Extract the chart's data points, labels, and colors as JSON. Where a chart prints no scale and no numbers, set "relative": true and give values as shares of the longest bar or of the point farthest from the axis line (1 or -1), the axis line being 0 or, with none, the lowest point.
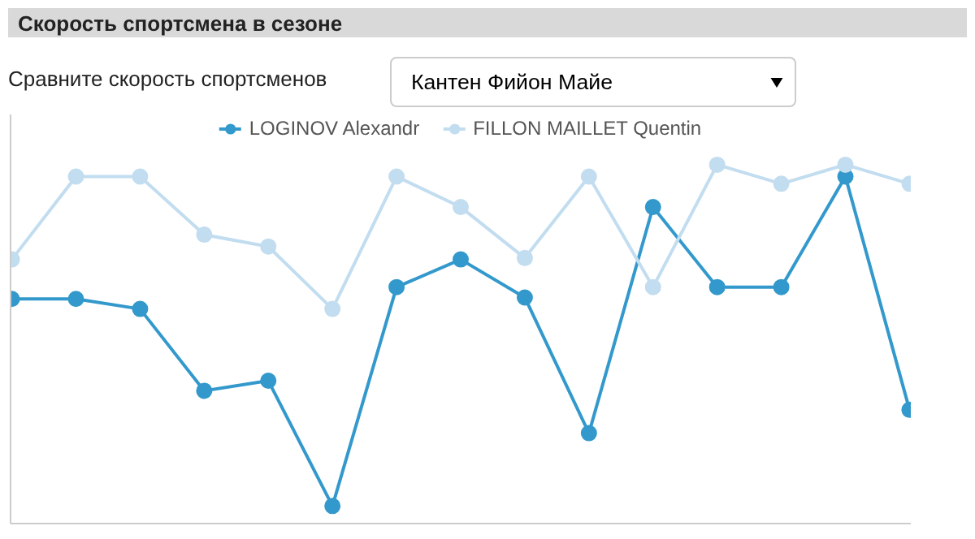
{
  "chart_data": {
    "type": "line",
    "title": "Скорость спортсмена в сезоне",
    "annotations": [
      "Сравните скорость спортсменов",
      "Кантен Фийон Майе"
    ],
    "categories": [
      null,
      null,
      null,
      null,
      null,
      null,
      null,
      null,
      null,
      null,
      null,
      null,
      null,
      null,
      null
    ],
    "relative": true,
    "series": [
      {
        "name": "LOGINOV Alexandr",
        "color": "#3399cc",
        "values": [
          0.626,
          0.626,
          0.598,
          0.37,
          0.398,
          0.049,
          0.659,
          0.736,
          0.63,
          0.252,
          0.882,
          0.659,
          0.659,
          0.967,
          0.317
        ]
      },
      {
        "name": "FILLON MAILLET Quentin",
        "color": "#c2ddf0",
        "values": [
          0.736,
          0.967,
          0.967,
          0.805,
          0.772,
          0.598,
          0.967,
          0.882,
          0.74,
          0.967,
          0.659,
          1,
          0.947,
          1,
          0.947
        ]
      }
    ],
    "marker": "circle",
    "line_style": "solid",
    "grid": false,
    "legend": "top",
    "tick_labels": false
  }
}
